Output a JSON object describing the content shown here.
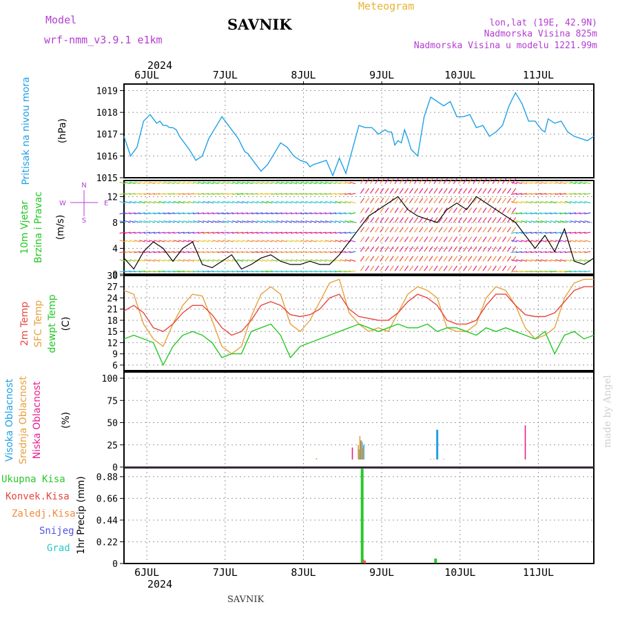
{
  "header": {
    "model_label": "Model",
    "model_name": "wrf-nmm_v3.9.1 e1km",
    "station": "SAVNIK",
    "title": "Meteogram",
    "coords": "lon,lat (19E, 42.9N)",
    "elevation": "Nadmorska Visina 825m",
    "model_elevation": "Nadmorska Visina u modelu 1221.99m",
    "year": "2024",
    "footer_station": "SAVNIK",
    "credit": "made by Angel"
  },
  "colors": {
    "pressure": "#1ea0e6",
    "temp2m": "#e6463c",
    "sfc": "#e6a03c",
    "dew": "#22c822",
    "label_purple": "#b43cd2",
    "label_orange": "#e6b432",
    "cloud_high": "#1ea0e6",
    "cloud_mid": "#e6a03c",
    "cloud_low": "#e61e8c",
    "precip_total": "#28c828",
    "precip_conv": "#e6463c",
    "precip_frozen": "#f08c3c",
    "precip_snow": "#5050e6",
    "precip_grad": "#28c8c8"
  },
  "chart_data": {
    "type": "meteogram",
    "x_axis": {
      "unit": "hours",
      "range": [
        0,
        144
      ],
      "day_ticks": [
        "6JUL",
        "7JUL",
        "8JUL",
        "9JUL",
        "10JUL",
        "11JUL"
      ],
      "year": "2024"
    },
    "panels": [
      {
        "id": "pressure",
        "type": "line",
        "ylabel_left": "Pritisak na nivou mora",
        "ylabel_unit": "(hPa)",
        "ylim": [
          1015,
          1019.3
        ],
        "yticks": [
          1015,
          1016,
          1017,
          1018,
          1019
        ],
        "series": [
          {
            "name": "pressure",
            "x": [
              0,
              2,
              4,
              6,
              8,
              9,
              10,
              11,
              12,
              13,
              14,
              15,
              16,
              17,
              18,
              19,
              20,
              22,
              24,
              26,
              28,
              30,
              32,
              34,
              35,
              36,
              37,
              38,
              40,
              42,
              44,
              46,
              48,
              50,
              52,
              54,
              56,
              57,
              58,
              60,
              62,
              64,
              66,
              68,
              70,
              72,
              74,
              76,
              78,
              80,
              81,
              82,
              83,
              84,
              85,
              86,
              87,
              88,
              90,
              92,
              94,
              96,
              98,
              100,
              102,
              104,
              106,
              108,
              110,
              112,
              114,
              116,
              118,
              120,
              122,
              124,
              126,
              128,
              129,
              130,
              132,
              134,
              136,
              138,
              140,
              142,
              144
            ],
            "values": [
              1016.9,
              1016.0,
              1016.4,
              1017.6,
              1017.9,
              1017.7,
              1017.5,
              1017.6,
              1017.4,
              1017.4,
              1017.3,
              1017.3,
              1017.2,
              1016.9,
              1016.7,
              1016.5,
              1016.3,
              1015.8,
              1016.0,
              1016.8,
              1017.3,
              1017.8,
              1017.4,
              1017.0,
              1016.8,
              1016.5,
              1016.2,
              1016.1,
              1015.7,
              1015.3,
              1015.6,
              1016.1,
              1016.6,
              1016.4,
              1016.0,
              1015.8,
              1015.7,
              1015.5,
              1015.6,
              1015.7,
              1015.8,
              1015.1,
              1015.9,
              1015.2,
              1016.3,
              1017.4,
              1017.3,
              1017.3,
              1017.0,
              1017.2,
              1017.1,
              1017.1,
              1016.5,
              1016.7,
              1016.6,
              1017.2,
              1016.8,
              1016.3,
              1016.0,
              1017.8,
              1018.7,
              1018.5,
              1018.3,
              1018.5,
              1017.8,
              1017.8,
              1017.9,
              1017.3,
              1017.4,
              1016.9,
              1017.1,
              1017.4,
              1018.3,
              1018.9,
              1018.4,
              1017.6,
              1017.6,
              1017.2,
              1017.1,
              1017.7,
              1017.5,
              1017.6,
              1017.1,
              1016.9,
              1016.8,
              1016.7,
              1016.9
            ]
          }
        ]
      },
      {
        "id": "wind",
        "type": "barbs",
        "ylabel_left": "10m Vjetar",
        "ylabel_left2": "Brzina i Pravac",
        "ylabel_unit": "(m/s)",
        "compass": [
          "N",
          "E",
          "W",
          "S"
        ],
        "ylim": [
          0,
          14.5
        ],
        "yticks": [
          0,
          4,
          8,
          12
        ],
        "levels": [
          0.5,
          2,
          3.5,
          5,
          6.5,
          8,
          9.5,
          11,
          12.5,
          14
        ],
        "speed_series": {
          "x": [
            0,
            3,
            6,
            9,
            12,
            15,
            18,
            21,
            24,
            27,
            30,
            33,
            36,
            39,
            42,
            45,
            48,
            51,
            54,
            57,
            60,
            63,
            66,
            69,
            72,
            75,
            78,
            81,
            84,
            87,
            90,
            93,
            96,
            99,
            102,
            105,
            108,
            111,
            114,
            117,
            120,
            123,
            126,
            129,
            132,
            135,
            138,
            141,
            144
          ],
          "values": [
            2.5,
            0.8,
            3.5,
            5.0,
            4.0,
            2.0,
            4.0,
            5.0,
            1.5,
            1.0,
            2.0,
            3.0,
            0.8,
            1.5,
            2.5,
            3.0,
            2.0,
            1.5,
            1.5,
            2.0,
            1.5,
            1.5,
            3.0,
            5.0,
            7.0,
            9.0,
            10.0,
            11.0,
            12.0,
            10.0,
            9.0,
            8.5,
            8.0,
            10.0,
            11.0,
            10.0,
            12.0,
            11.0,
            10.0,
            9.0,
            8.0,
            6.0,
            4.0,
            6.0,
            3.5,
            7.0,
            2.0,
            1.5,
            2.5
          ]
        }
      },
      {
        "id": "temperature",
        "type": "line",
        "ylabel_left": "2m Temp",
        "ylabel_left2": "SFC Temp",
        "ylabel_left3": "dewpt Temp",
        "ylabel_unit": "(C)",
        "ylim": [
          4.5,
          30
        ],
        "yticks": [
          6,
          9,
          12,
          15,
          18,
          21,
          24,
          27,
          30
        ],
        "series": [
          {
            "name": "2m Temp",
            "x": [
              0,
              3,
              6,
              9,
              12,
              15,
              18,
              21,
              24,
              27,
              30,
              33,
              36,
              39,
              42,
              45,
              48,
              51,
              54,
              57,
              60,
              63,
              66,
              69,
              72,
              75,
              78,
              81,
              84,
              87,
              90,
              93,
              96,
              99,
              102,
              105,
              108,
              111,
              114,
              117,
              120,
              123,
              126,
              129,
              132,
              135,
              138,
              141,
              144
            ],
            "values": [
              20.5,
              22,
              20,
              16,
              15,
              17,
              20,
              22,
              22,
              19.5,
              16,
              14,
              15,
              18,
              22,
              23,
              22,
              19.5,
              19,
              19.5,
              21,
              24,
              25,
              21,
              19,
              18.5,
              18,
              18,
              20,
              23,
              25,
              24,
              22,
              18,
              17,
              17,
              18,
              22,
              25,
              25,
              22,
              19.5,
              19,
              19,
              20,
              23,
              26,
              27,
              27
            ]
          },
          {
            "name": "SFC Temp",
            "x": [
              0,
              3,
              6,
              9,
              12,
              15,
              18,
              21,
              24,
              27,
              30,
              33,
              36,
              39,
              42,
              45,
              48,
              51,
              54,
              57,
              60,
              63,
              66,
              69,
              72,
              75,
              78,
              81,
              84,
              87,
              90,
              93,
              96,
              99,
              102,
              105,
              108,
              111,
              114,
              117,
              120,
              123,
              126,
              129,
              132,
              135,
              138,
              141,
              144
            ],
            "values": [
              26,
              25,
              17,
              13,
              11,
              17,
              22,
              25,
              24.5,
              18,
              11,
              9,
              11,
              19,
              25,
              27,
              25,
              17,
              15,
              18,
              23,
              28,
              29,
              20,
              17,
              15,
              16,
              15,
              20,
              25,
              27,
              26,
              24,
              16,
              15,
              15,
              17,
              24,
              27,
              26,
              22,
              16,
              13,
              14,
              16,
              24,
              28,
              29,
              29
            ]
          },
          {
            "name": "dewpt Temp",
            "x": [
              0,
              3,
              6,
              9,
              12,
              15,
              18,
              21,
              24,
              27,
              30,
              33,
              36,
              39,
              42,
              45,
              48,
              51,
              54,
              57,
              60,
              63,
              66,
              69,
              72,
              75,
              78,
              81,
              84,
              87,
              90,
              93,
              96,
              99,
              102,
              105,
              108,
              111,
              114,
              117,
              120,
              123,
              126,
              129,
              132,
              135,
              138,
              141,
              144
            ],
            "values": [
              13,
              14,
              13,
              12,
              6,
              11,
              14,
              15,
              14,
              12,
              8,
              9,
              9,
              15,
              16,
              17,
              14,
              8,
              11,
              12,
              13,
              14,
              15,
              16,
              17,
              16,
              15,
              16,
              17,
              16,
              16,
              17,
              15,
              16,
              16,
              15,
              14,
              16,
              15,
              16,
              15,
              14,
              13,
              15,
              9,
              14,
              15,
              13,
              14
            ]
          }
        ]
      },
      {
        "id": "clouds",
        "type": "bar",
        "ylabel_left": "Visoka Oblacnost",
        "ylabel_left2": "Srednja Oblacnost",
        "ylabel_left3": "Niska Oblacnost",
        "ylabel_unit": "(%)",
        "ylim": [
          0,
          107
        ],
        "yticks": [
          0,
          25,
          50,
          75,
          100
        ],
        "series": [
          {
            "name": "Visoka Oblacnost",
            "x": [
              71.5,
              72.0,
              72.5,
              73.0,
              73.5,
              96.0
            ],
            "values": [
              8,
              20,
              30,
              28,
              25,
              42
            ]
          },
          {
            "name": "Srednja Oblacnost",
            "x": [
              59.0,
              71.8,
              72.3,
              72.8,
              73.3
            ],
            "values": [
              10,
              25,
              35,
              30,
              22
            ]
          },
          {
            "name": "Niska Oblacnost",
            "x": [
              5,
              21,
              22,
              28,
              70,
              74.5,
              94,
              95,
              98,
              118,
              119,
              122,
              123,
              140
            ],
            "values": [
              2,
              3,
              3,
              5,
              22,
              8,
              9,
              9,
              9,
              8,
              5,
              8,
              47,
              6
            ]
          }
        ]
      },
      {
        "id": "precip",
        "type": "bar",
        "ylabel_left": "1hr Precip (mm)",
        "ylim": [
          0,
          0.97
        ],
        "yticks": [
          0,
          0.22,
          0.44,
          0.66,
          0.88
        ],
        "series": [
          {
            "name": "Ukupna Kisa",
            "x": [
              73,
              95.5
            ],
            "values": [
              0.96,
              0.05
            ]
          },
          {
            "name": "Konvek.Kisa",
            "x": [
              73.4,
              73.9
            ],
            "values": [
              0.04,
              0.03
            ]
          },
          {
            "name": "Zaledj.Kisa",
            "x": [],
            "values": []
          },
          {
            "name": "Snijeg",
            "x": [],
            "values": []
          },
          {
            "name": "Grad",
            "x": [],
            "values": []
          }
        ]
      }
    ]
  }
}
